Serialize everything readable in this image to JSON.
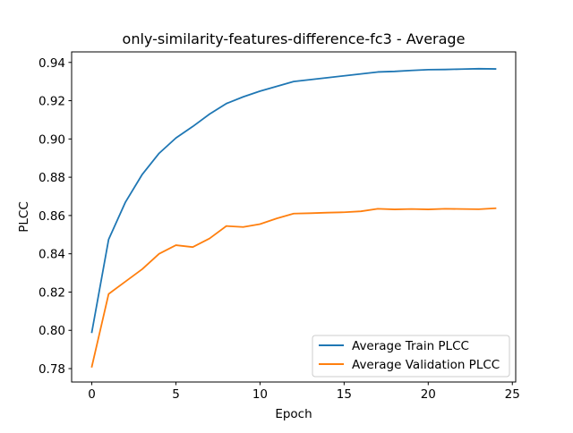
{
  "chart_data": {
    "type": "line",
    "title": "only-similarity-features-difference-fc3 - Average",
    "xlabel": "Epoch",
    "ylabel": "PLCC",
    "xlim": [
      -1.2,
      25.2
    ],
    "ylim": [
      0.773,
      0.9455
    ],
    "xticks": [
      0,
      5,
      10,
      15,
      20,
      25
    ],
    "yticks": [
      0.78,
      0.8,
      0.82,
      0.84,
      0.86,
      0.88,
      0.9,
      0.92,
      0.94
    ],
    "grid": false,
    "legend_position": "lower-right",
    "x": [
      0,
      1,
      2,
      3,
      4,
      5,
      6,
      7,
      8,
      9,
      10,
      11,
      12,
      13,
      14,
      15,
      16,
      17,
      18,
      19,
      20,
      21,
      22,
      23,
      24
    ],
    "series": [
      {
        "name": "Average Train PLCC",
        "color": "#1f77b4",
        "values": [
          0.799,
          0.8475,
          0.867,
          0.8815,
          0.8925,
          0.9005,
          0.9065,
          0.913,
          0.9185,
          0.922,
          0.925,
          0.9275,
          0.93,
          0.931,
          0.932,
          0.933,
          0.934,
          0.935,
          0.9353,
          0.9358,
          0.9362,
          0.9363,
          0.9365,
          0.9367,
          0.9366
        ]
      },
      {
        "name": "Average Validation PLCC",
        "color": "#ff7f0e",
        "values": [
          0.781,
          0.819,
          0.8255,
          0.832,
          0.84,
          0.8445,
          0.8435,
          0.848,
          0.8545,
          0.854,
          0.8555,
          0.8585,
          0.861,
          0.8612,
          0.8615,
          0.8617,
          0.8622,
          0.8635,
          0.8632,
          0.8634,
          0.8632,
          0.8635,
          0.8634,
          0.8633,
          0.8638
        ]
      }
    ]
  }
}
